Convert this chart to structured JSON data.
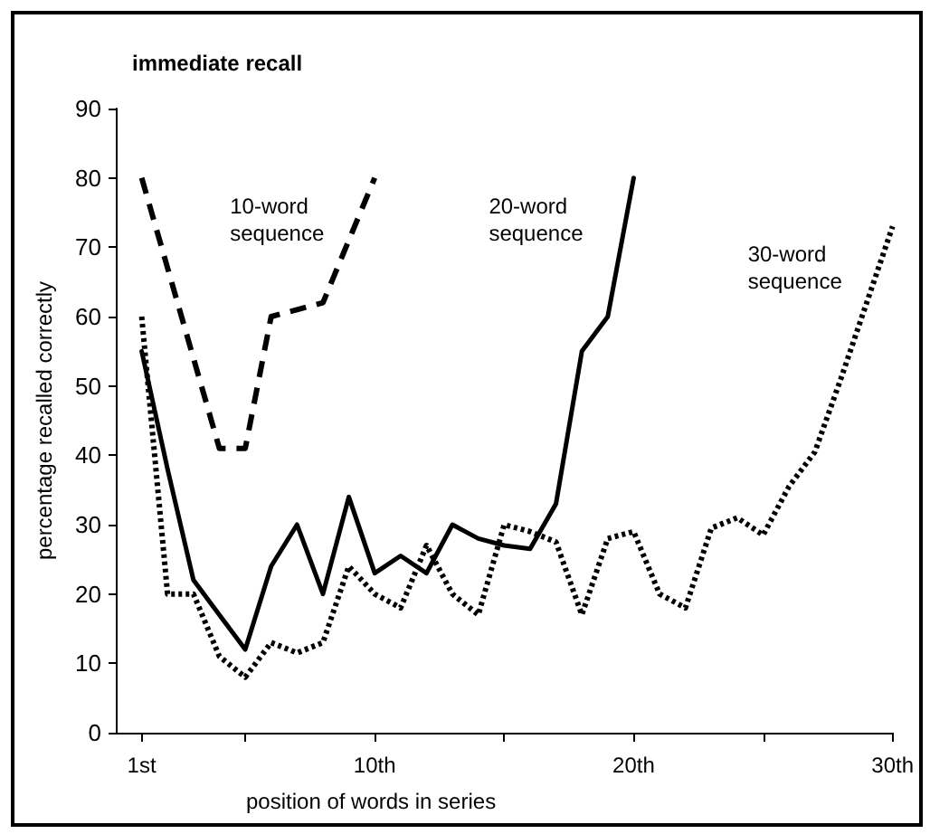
{
  "chart_data": {
    "type": "line",
    "title": "immediate recall",
    "xlabel": "position of words in series",
    "ylabel": "percentage recalled correctly",
    "xlim": [
      0,
      30
    ],
    "xticks": [
      {
        "value": 1,
        "label": "1st"
      },
      {
        "value": 5,
        "label": null
      },
      {
        "value": 10,
        "label": "10th"
      },
      {
        "value": 15,
        "label": null
      },
      {
        "value": 20,
        "label": "20th"
      },
      {
        "value": 25,
        "label": null
      },
      {
        "value": 30,
        "label": "30th"
      }
    ],
    "ylim": [
      0,
      90
    ],
    "yticks": [
      0,
      10,
      20,
      30,
      40,
      50,
      60,
      70,
      80,
      90
    ],
    "grid": false,
    "legend": false,
    "marker": "none",
    "series": [
      {
        "name": "10-word sequence",
        "color": "#000000",
        "line_style": "dashed",
        "x": [
          1,
          4,
          5,
          6,
          7,
          8,
          9,
          10
        ],
        "values": [
          80,
          41,
          41,
          60,
          61,
          62,
          71,
          80
        ]
      },
      {
        "name": "20-word sequence",
        "color": "#000000",
        "line_style": "solid",
        "x": [
          1,
          2,
          3,
          4,
          5,
          6,
          7,
          8,
          9,
          10,
          11,
          12,
          13,
          14,
          15,
          16,
          17,
          18,
          19,
          20
        ],
        "values": [
          55,
          38,
          22,
          17,
          12,
          24,
          30,
          20,
          34,
          23,
          25.5,
          23,
          30,
          28,
          27,
          26.5,
          33,
          55,
          60,
          80
        ]
      },
      {
        "name": "30-word sequence",
        "color": "#000000",
        "line_style": "dotted",
        "x": [
          1,
          2,
          3,
          4,
          5,
          6,
          7,
          8,
          9,
          10,
          11,
          12,
          13,
          14,
          15,
          16,
          17,
          18,
          19,
          20,
          21,
          22,
          23,
          24,
          25,
          26,
          27,
          28,
          29,
          30
        ],
        "values": [
          60,
          20,
          20,
          11,
          8,
          13,
          11.5,
          13,
          24,
          20,
          18,
          27,
          20,
          17,
          30,
          29,
          27.5,
          17,
          28,
          29,
          20,
          18,
          29.5,
          31,
          28.5,
          35.5,
          40.5,
          51,
          62,
          73
        ]
      }
    ]
  }
}
